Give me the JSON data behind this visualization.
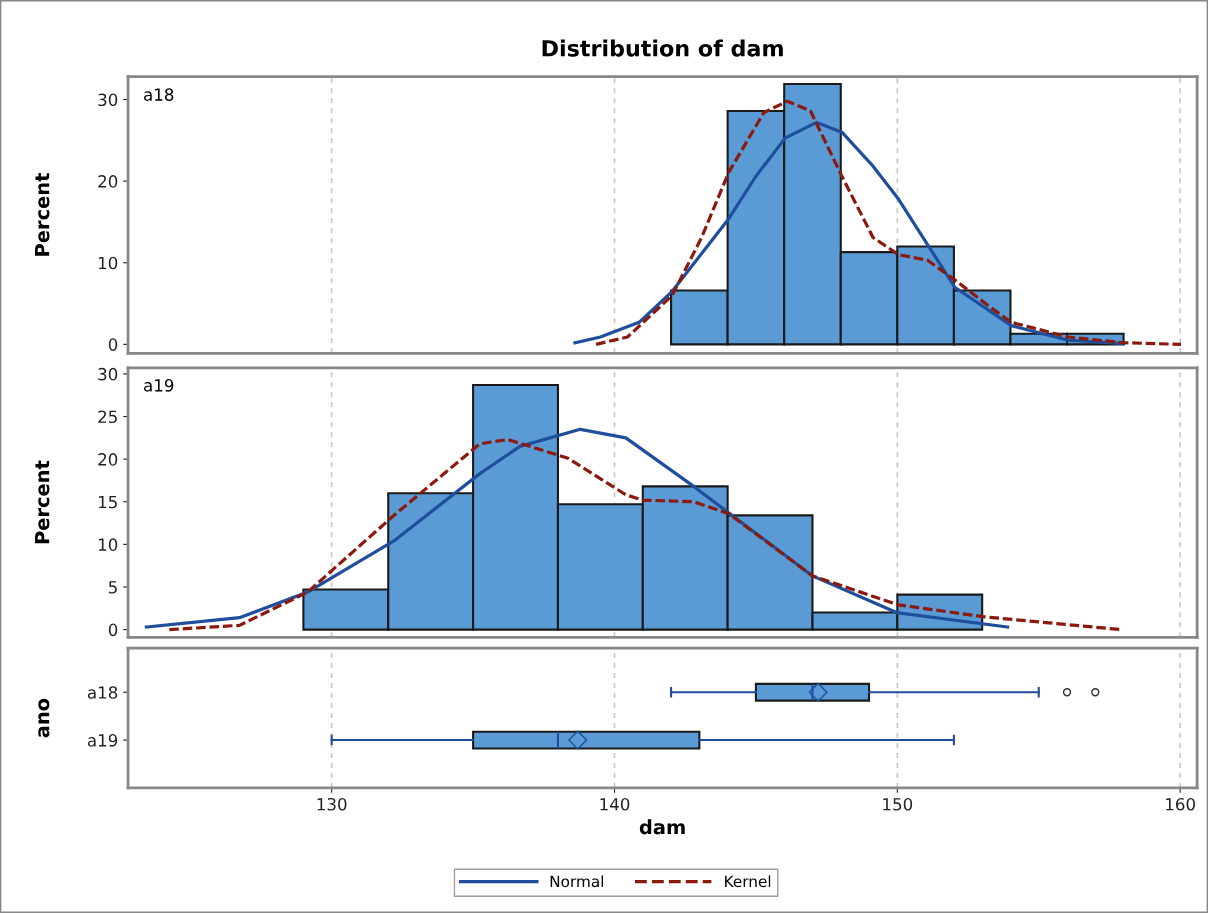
{
  "chart_data": [
    {
      "type": "histogram",
      "title": "Distribution of dam",
      "ylabel": "Percent",
      "annotations": [
        "a18"
      ],
      "bins": [
        142,
        144,
        146,
        148,
        150,
        152,
        154,
        156,
        158
      ],
      "values": [
        6.6,
        28.6,
        31.9,
        11.3,
        12.0,
        6.6,
        1.3,
        1.3
      ],
      "color": "#5b9bd5",
      "series": [
        {
          "type": "line",
          "name": "Normal",
          "color": "#1f4e9c",
          "line_style": "solid",
          "x": [
            138.6,
            139.5,
            140.87,
            142.04,
            144.04,
            145.0,
            146.04,
            147.15,
            148.04,
            149.1,
            150.04,
            151.0,
            152.03,
            154.03,
            156.04,
            158.0
          ],
          "values": [
            0.2,
            0.9,
            2.7,
            6.5,
            15.4,
            20.6,
            25.3,
            27.2,
            26.0,
            22.0,
            17.8,
            12.6,
            7.0,
            2.3,
            0.5,
            0.1
          ]
        },
        {
          "type": "line",
          "name": "Kernel",
          "color": "#8b1a0e",
          "line_style": "dashed",
          "x": [
            139.35,
            140.46,
            142.04,
            143.08,
            144.04,
            145.28,
            146.11,
            146.93,
            148.04,
            149.14,
            150.04,
            151.07,
            152.03,
            153.27,
            154.03,
            156.04,
            158.0,
            160.03
          ],
          "values": [
            0.0,
            0.9,
            6.0,
            13.1,
            21.1,
            28.4,
            29.8,
            28.6,
            20.6,
            13.1,
            11.0,
            10.3,
            7.9,
            4.6,
            2.7,
            0.9,
            0.2,
            0.0
          ]
        }
      ],
      "xlim": [
        122.8,
        160.6
      ],
      "xticks": [
        130,
        140,
        150,
        160
      ],
      "ylim": [
        -1.1,
        32.8
      ],
      "yticks": [
        0,
        10,
        20,
        30
      ],
      "grid": "x",
      "tick_labels": "y",
      "legend": "bottom"
    },
    {
      "type": "histogram",
      "ylabel": "Percent",
      "annotations": [
        "a19"
      ],
      "bins": [
        129,
        132,
        135,
        138,
        141,
        144,
        147,
        150,
        153
      ],
      "values": [
        4.7,
        16.0,
        28.7,
        14.7,
        16.8,
        13.4,
        2.0,
        4.1
      ],
      "color": "#5b9bd5",
      "series": [
        {
          "type": "line",
          "name": "Normal",
          "color": "#1f4e9c",
          "line_style": "solid",
          "x": [
            123.45,
            126.74,
            129.15,
            132.2,
            135.24,
            136.66,
            138.79,
            140.4,
            142.8,
            147.0,
            149.97,
            153.9
          ],
          "values": [
            0.3,
            1.4,
            4.4,
            10.4,
            18.3,
            21.5,
            23.5,
            22.5,
            16.8,
            6.3,
            2.0,
            0.3
          ]
        },
        {
          "type": "line",
          "name": "Kernel",
          "color": "#8b1a0e",
          "line_style": "dashed",
          "x": [
            124.26,
            126.74,
            129.15,
            132.2,
            135.24,
            136.23,
            138.36,
            140.41,
            141.0,
            142.8,
            144.04,
            147.0,
            150.04,
            153.07,
            157.9
          ],
          "values": [
            0.0,
            0.5,
            4.4,
            13.4,
            21.8,
            22.3,
            20.1,
            15.8,
            15.2,
            15.0,
            13.6,
            6.3,
            2.9,
            1.5,
            0.0
          ]
        }
      ],
      "xlim": [
        122.8,
        160.6
      ],
      "xticks": [
        130,
        140,
        150,
        160
      ],
      "ylim": [
        -0.9,
        30.7
      ],
      "yticks": [
        0,
        5,
        10,
        15,
        20,
        25,
        30
      ],
      "grid": "x",
      "tick_labels": "y",
      "legend": "bottom"
    },
    {
      "type": "box",
      "orientation": "horizontal",
      "xlabel": "dam",
      "ylabel": "ano",
      "categories": [
        "a18",
        "a19"
      ],
      "color": "#5b9bd5",
      "boxes": [
        {
          "low": 142,
          "q1": 145,
          "median": 147,
          "q3": 149,
          "high": 155,
          "mean": 147.2,
          "outliers": [
            156,
            157
          ]
        },
        {
          "low": 130,
          "q1": 135,
          "median": 138,
          "q3": 143,
          "high": 152,
          "mean": 138.7
        }
      ],
      "xlim": [
        122.8,
        160.6
      ],
      "xticks": [
        130,
        140,
        150,
        160
      ],
      "grid": "x"
    }
  ]
}
